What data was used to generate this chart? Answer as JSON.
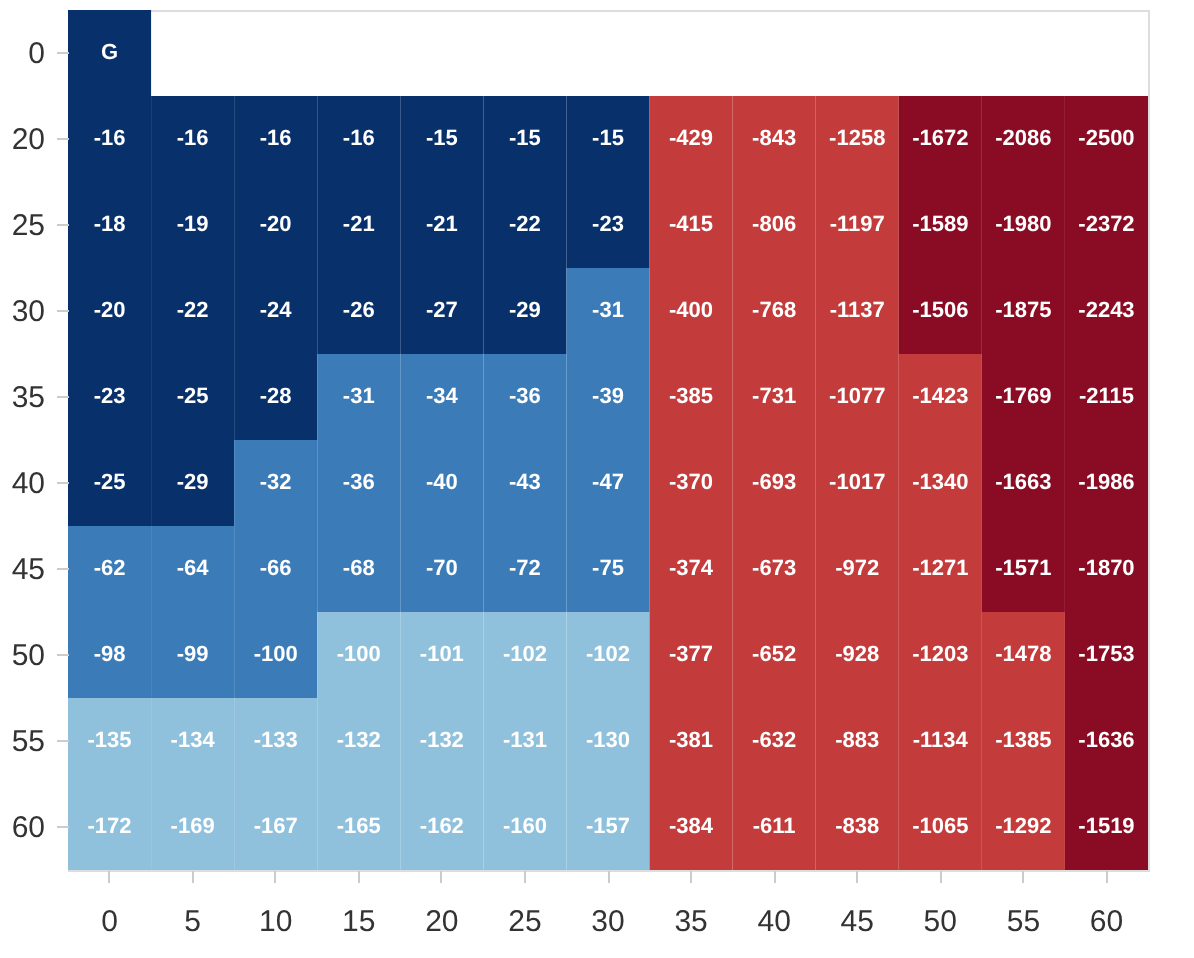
{
  "chart_data": {
    "type": "heatmap",
    "data_labels": true,
    "categories": [
      "0",
      "5",
      "10",
      "15",
      "20",
      "25",
      "30",
      "35",
      "40",
      "45",
      "50",
      "55",
      "60"
    ],
    "y_categories": [
      "0",
      "20",
      "25",
      "30",
      "35",
      "40",
      "45",
      "50",
      "55",
      "60"
    ],
    "cells": [
      [
        null,
        null,
        null,
        null,
        null,
        null,
        null,
        null,
        null,
        null,
        null,
        null,
        null
      ],
      [
        -16,
        -16,
        -16,
        -16,
        -15,
        -15,
        -15,
        -429,
        -843,
        -1258,
        -1672,
        -2086,
        -2500
      ],
      [
        -18,
        -19,
        -20,
        -21,
        -21,
        -22,
        -23,
        -415,
        -806,
        -1197,
        -1589,
        -1980,
        -2372
      ],
      [
        -20,
        -22,
        -24,
        -26,
        -27,
        -29,
        -31,
        -400,
        -768,
        -1137,
        -1506,
        -1875,
        -2243
      ],
      [
        -23,
        -25,
        -28,
        -31,
        -34,
        -36,
        -39,
        -385,
        -731,
        -1077,
        -1423,
        -1769,
        -2115
      ],
      [
        -25,
        -29,
        -32,
        -36,
        -40,
        -43,
        -47,
        -370,
        -693,
        -1017,
        -1340,
        -1663,
        -1986
      ],
      [
        -62,
        -64,
        -66,
        -68,
        -70,
        -72,
        -75,
        -374,
        -673,
        -972,
        -1271,
        -1571,
        -1870
      ],
      [
        -98,
        -99,
        -100,
        -100,
        -101,
        -102,
        -102,
        -377,
        -652,
        -928,
        -1203,
        -1478,
        -1753
      ],
      [
        -135,
        -134,
        -133,
        -132,
        -132,
        -131,
        -130,
        -381,
        -632,
        -883,
        -1134,
        -1385,
        -1636
      ],
      [
        -172,
        -169,
        -167,
        -165,
        -162,
        -160,
        -157,
        -384,
        -611,
        -838,
        -1065,
        -1292,
        -1519
      ]
    ],
    "annotations": [
      {
        "text": "G",
        "x": "0",
        "y": "0"
      }
    ],
    "colors": [
      [
        "#08306b",
        null,
        null,
        null,
        null,
        null,
        null,
        null,
        null,
        null,
        null,
        null,
        null
      ],
      [
        "#08306b",
        "#08306b",
        "#08306b",
        "#08306b",
        "#08306b",
        "#08306b",
        "#08306b",
        "#c33b3b",
        "#c33b3b",
        "#c33b3b",
        "#8a0c24",
        "#8a0c24",
        "#8a0c24"
      ],
      [
        "#08306b",
        "#08306b",
        "#08306b",
        "#08306b",
        "#08306b",
        "#08306b",
        "#08306b",
        "#c33b3b",
        "#c33b3b",
        "#c33b3b",
        "#8a0c24",
        "#8a0c24",
        "#8a0c24"
      ],
      [
        "#08306b",
        "#08306b",
        "#08306b",
        "#08306b",
        "#08306b",
        "#08306b",
        "#3a7bb8",
        "#c33b3b",
        "#c33b3b",
        "#c33b3b",
        "#8a0c24",
        "#8a0c24",
        "#8a0c24"
      ],
      [
        "#08306b",
        "#08306b",
        "#08306b",
        "#3a7bb8",
        "#3a7bb8",
        "#3a7bb8",
        "#3a7bb8",
        "#c33b3b",
        "#c33b3b",
        "#c33b3b",
        "#c33b3b",
        "#8a0c24",
        "#8a0c24"
      ],
      [
        "#08306b",
        "#08306b",
        "#3a7bb8",
        "#3a7bb8",
        "#3a7bb8",
        "#3a7bb8",
        "#3a7bb8",
        "#c33b3b",
        "#c33b3b",
        "#c33b3b",
        "#c33b3b",
        "#8a0c24",
        "#8a0c24"
      ],
      [
        "#3a7bb8",
        "#3a7bb8",
        "#3a7bb8",
        "#3a7bb8",
        "#3a7bb8",
        "#3a7bb8",
        "#3a7bb8",
        "#c33b3b",
        "#c33b3b",
        "#c33b3b",
        "#c33b3b",
        "#8a0c24",
        "#8a0c24"
      ],
      [
        "#3a7bb8",
        "#3a7bb8",
        "#3a7bb8",
        "#8fc1dc",
        "#8fc1dc",
        "#8fc1dc",
        "#8fc1dc",
        "#c33b3b",
        "#c33b3b",
        "#c33b3b",
        "#c33b3b",
        "#c33b3b",
        "#8a0c24"
      ],
      [
        "#8fc1dc",
        "#8fc1dc",
        "#8fc1dc",
        "#8fc1dc",
        "#8fc1dc",
        "#8fc1dc",
        "#8fc1dc",
        "#c33b3b",
        "#c33b3b",
        "#c33b3b",
        "#c33b3b",
        "#c33b3b",
        "#8a0c24"
      ],
      [
        "#8fc1dc",
        "#8fc1dc",
        "#8fc1dc",
        "#8fc1dc",
        "#8fc1dc",
        "#8fc1dc",
        "#8fc1dc",
        "#c33b3b",
        "#c33b3b",
        "#c33b3b",
        "#c33b3b",
        "#c33b3b",
        "#8a0c24"
      ]
    ]
  }
}
